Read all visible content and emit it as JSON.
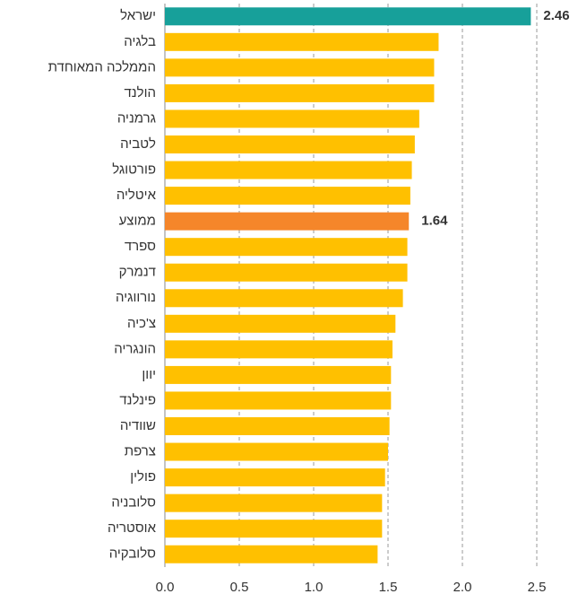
{
  "chart_data": {
    "type": "bar",
    "orientation": "horizontal",
    "categories": [
      "ישראל",
      "בלגיה",
      "הממלכה המאוחדת",
      "הולנד",
      "גרמניה",
      "לטביה",
      "פורטוגל",
      "איטליה",
      "ממוצע",
      "ספרד",
      "דנמרק",
      "נורווגיה",
      "צ'כיה",
      "הונגריה",
      "יוון",
      "פינלנד",
      "שוודיה",
      "צרפת",
      "פולין",
      "סלובניה",
      "אוסטריה",
      "סלובקיה"
    ],
    "values": [
      2.46,
      1.84,
      1.81,
      1.81,
      1.71,
      1.68,
      1.66,
      1.65,
      1.64,
      1.63,
      1.63,
      1.6,
      1.55,
      1.53,
      1.52,
      1.52,
      1.51,
      1.5,
      1.48,
      1.46,
      1.46,
      1.43
    ],
    "value_labels": [
      "2.46",
      null,
      null,
      null,
      null,
      null,
      null,
      null,
      "1.64",
      null,
      null,
      null,
      null,
      null,
      null,
      null,
      null,
      null,
      null,
      null,
      null,
      null
    ],
    "colors": [
      "#17a09a",
      "#ffc000",
      "#ffc000",
      "#ffc000",
      "#ffc000",
      "#ffc000",
      "#ffc000",
      "#ffc000",
      "#f5862a",
      "#ffc000",
      "#ffc000",
      "#ffc000",
      "#ffc000",
      "#ffc000",
      "#ffc000",
      "#ffc000",
      "#ffc000",
      "#ffc000",
      "#ffc000",
      "#ffc000",
      "#ffc000",
      "#ffc000"
    ],
    "xlim": [
      0,
      2.7
    ],
    "xticks": [
      {
        "value": 0,
        "label": "0.0"
      },
      0.5,
      {
        "value": 1,
        "label": "1.0"
      },
      1.5,
      {
        "value": 2,
        "label": "2.0"
      },
      2.5
    ],
    "grid": true
  }
}
